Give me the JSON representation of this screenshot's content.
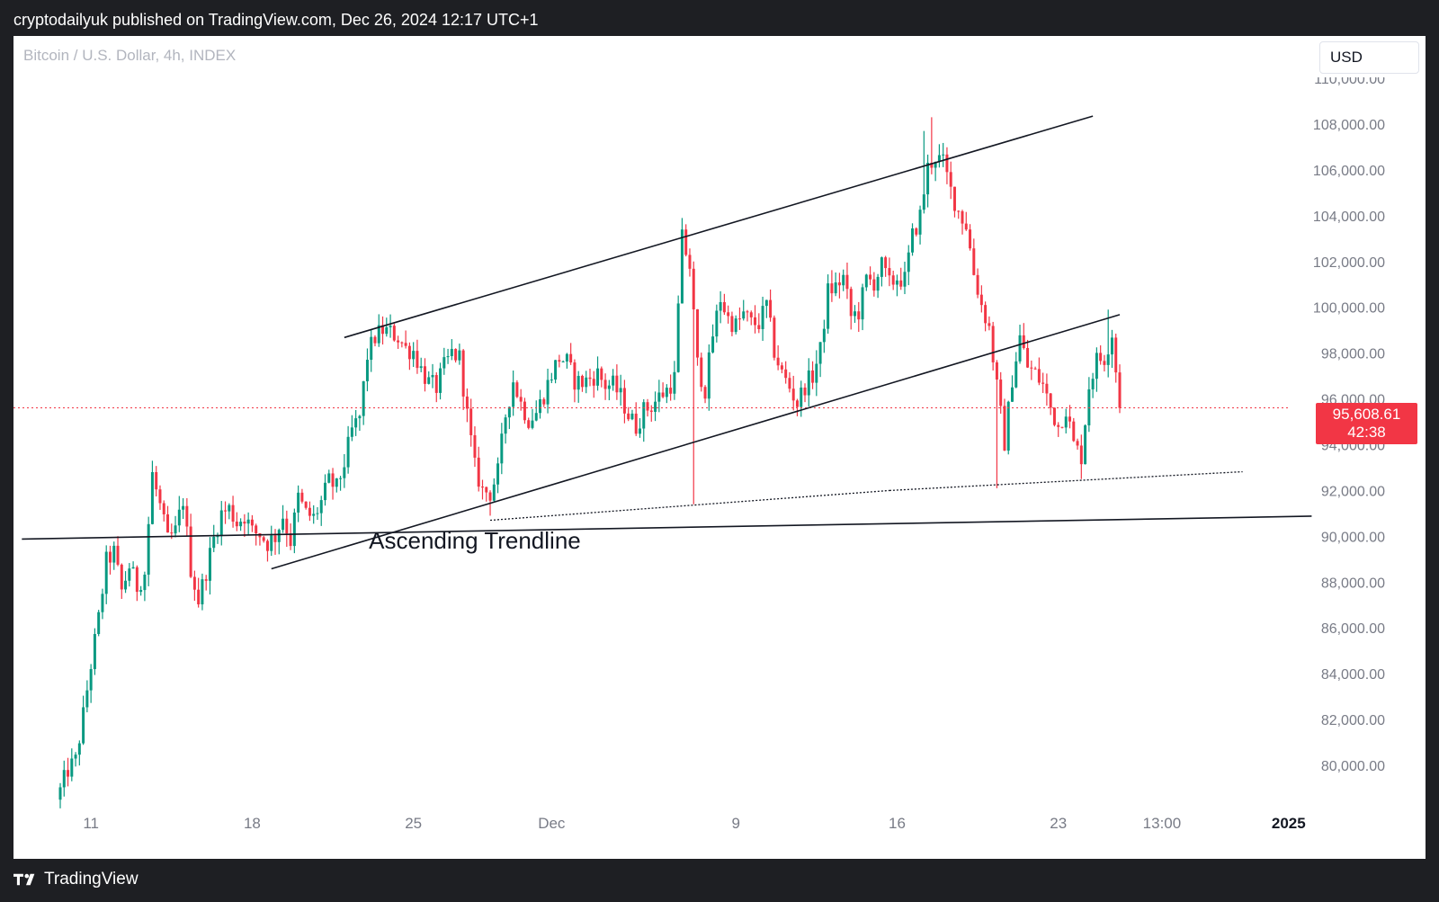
{
  "publish_bar": {
    "text": "cryptodailyuk published on TradingView.com, Dec 26, 2024 12:17 UTC+1"
  },
  "header": {
    "symbol": "Bitcoin / U.S. Dollar, 4h, INDEX",
    "currency": "USD"
  },
  "last_price": {
    "price": "95,608.61",
    "countdown": "42:38",
    "color": "#f23645"
  },
  "footer": {
    "logo_icon": "tradingview-logo-icon",
    "brand": "TradingView"
  },
  "colors": {
    "up": "#089981",
    "down": "#f23645",
    "background": "#ffffff",
    "frame": "#1e1f23",
    "axis_text": "#787b86"
  },
  "chart_data": {
    "type": "candlestick",
    "ylim": [
      78500,
      110500
    ],
    "y_ticks": [
      {
        "value": 80000,
        "label": "80,000.00"
      },
      {
        "value": 82000,
        "label": "82,000.00"
      },
      {
        "value": 84000,
        "label": "84,000.00"
      },
      {
        "value": 86000,
        "label": "86,000.00"
      },
      {
        "value": 88000,
        "label": "88,000.00"
      },
      {
        "value": 90000,
        "label": "90,000.00"
      },
      {
        "value": 92000,
        "label": "92,000.00"
      },
      {
        "value": 94000,
        "label": "94,000.00"
      },
      {
        "value": 96000,
        "label": "96,000.00"
      },
      {
        "value": 98000,
        "label": "98,000.00"
      },
      {
        "value": 100000,
        "label": "100,000.00"
      },
      {
        "value": 102000,
        "label": "102,000.00"
      },
      {
        "value": 104000,
        "label": "104,000.00"
      },
      {
        "value": 106000,
        "label": "106,000.00"
      },
      {
        "value": 108000,
        "label": "108,000.00"
      },
      {
        "value": 110000,
        "label": "110,000.00"
      }
    ],
    "x_range": [
      0,
      276
    ],
    "x_ticks": [
      {
        "t": 8,
        "label": "11"
      },
      {
        "t": 50,
        "label": "18"
      },
      {
        "t": 92,
        "label": "25"
      },
      {
        "t": 128,
        "label": "Dec"
      },
      {
        "t": 176,
        "label": "9"
      },
      {
        "t": 218,
        "label": "16"
      },
      {
        "t": 260,
        "label": "23"
      },
      {
        "t": 287,
        "label": "13:00"
      },
      {
        "t": 320,
        "label": "2025"
      }
    ],
    "x_tick_bold": [
      false,
      false,
      false,
      false,
      false,
      false,
      false,
      false,
      true
    ],
    "annotation": {
      "text": "Ascending Trendline",
      "t": 108,
      "price": 89850
    },
    "horizontal_trendline": {
      "p1": [
        -10,
        89880
      ],
      "p2": [
        326,
        90880
      ]
    },
    "channel_upper": {
      "p1": [
        74,
        98680
      ],
      "p2": [
        269,
        108350
      ]
    },
    "channel_lower": {
      "p1": [
        55,
        88580
      ],
      "p2": [
        276,
        99680
      ]
    },
    "support_dotted_1": {
      "p1": [
        112,
        90700
      ],
      "p2": [
        216,
        92000
      ]
    },
    "support_dotted_2": {
      "p1": [
        216,
        92000
      ],
      "p2": [
        308,
        92820
      ]
    },
    "current_price": 95608.61,
    "anchors": [
      [
        0,
        78900
      ],
      [
        2,
        79800
      ],
      [
        4,
        80200
      ],
      [
        6,
        82200
      ],
      [
        8,
        84400
      ],
      [
        10,
        86400
      ],
      [
        12,
        88900
      ],
      [
        14,
        89300
      ],
      [
        16,
        87600
      ],
      [
        18,
        88700
      ],
      [
        20,
        87800
      ],
      [
        22,
        88400
      ],
      [
        24,
        92700
      ],
      [
        26,
        91300
      ],
      [
        28,
        89800
      ],
      [
        30,
        90200
      ],
      [
        32,
        91600
      ],
      [
        34,
        88600
      ],
      [
        36,
        87200
      ],
      [
        38,
        88500
      ],
      [
        40,
        89900
      ],
      [
        42,
        91000
      ],
      [
        44,
        91200
      ],
      [
        46,
        90600
      ],
      [
        48,
        90900
      ],
      [
        50,
        90200
      ],
      [
        52,
        90100
      ],
      [
        54,
        89700
      ],
      [
        56,
        90000
      ],
      [
        58,
        90900
      ],
      [
        60,
        89800
      ],
      [
        62,
        91700
      ],
      [
        64,
        91000
      ],
      [
        66,
        90800
      ],
      [
        68,
        91500
      ],
      [
        70,
        92400
      ],
      [
        72,
        92100
      ],
      [
        74,
        93200
      ],
      [
        76,
        94600
      ],
      [
        78,
        95200
      ],
      [
        80,
        97900
      ],
      [
        82,
        98700
      ],
      [
        84,
        99000
      ],
      [
        86,
        98900
      ],
      [
        88,
        98700
      ],
      [
        90,
        98200
      ],
      [
        92,
        98100
      ],
      [
        94,
        97300
      ],
      [
        96,
        96700
      ],
      [
        98,
        96500
      ],
      [
        100,
        97400
      ],
      [
        102,
        98000
      ],
      [
        104,
        97800
      ],
      [
        106,
        95300
      ],
      [
        108,
        93000
      ],
      [
        110,
        92000
      ],
      [
        112,
        91900
      ],
      [
        114,
        92800
      ],
      [
        116,
        95300
      ],
      [
        118,
        96800
      ],
      [
        120,
        95800
      ],
      [
        122,
        95100
      ],
      [
        124,
        95400
      ],
      [
        126,
        96200
      ],
      [
        128,
        97100
      ],
      [
        130,
        97800
      ],
      [
        132,
        97600
      ],
      [
        134,
        96800
      ],
      [
        136,
        96700
      ],
      [
        138,
        96900
      ],
      [
        140,
        97100
      ],
      [
        142,
        96600
      ],
      [
        144,
        96600
      ],
      [
        146,
        96100
      ],
      [
        148,
        95300
      ],
      [
        150,
        94800
      ],
      [
        152,
        95500
      ],
      [
        154,
        95700
      ],
      [
        156,
        96100
      ],
      [
        158,
        96400
      ],
      [
        160,
        96900
      ],
      [
        162,
        103000
      ],
      [
        164,
        101800
      ],
      [
        166,
        97500
      ],
      [
        168,
        96400
      ],
      [
        170,
        98800
      ],
      [
        172,
        100400
      ],
      [
        174,
        99500
      ],
      [
        176,
        99200
      ],
      [
        178,
        99700
      ],
      [
        180,
        99300
      ],
      [
        182,
        99300
      ],
      [
        184,
        100100
      ],
      [
        186,
        98100
      ],
      [
        188,
        97100
      ],
      [
        190,
        96500
      ],
      [
        192,
        95800
      ],
      [
        194,
        96600
      ],
      [
        196,
        97000
      ],
      [
        198,
        98100
      ],
      [
        200,
        100700
      ],
      [
        202,
        100900
      ],
      [
        204,
        101300
      ],
      [
        206,
        99600
      ],
      [
        208,
        99800
      ],
      [
        210,
        101200
      ],
      [
        212,
        101100
      ],
      [
        214,
        101800
      ],
      [
        216,
        101000
      ],
      [
        218,
        101300
      ],
      [
        220,
        101200
      ],
      [
        222,
        103100
      ],
      [
        224,
        104000
      ],
      [
        226,
        106100
      ],
      [
        228,
        106600
      ],
      [
        230,
        106300
      ],
      [
        232,
        105100
      ],
      [
        234,
        104200
      ],
      [
        236,
        103600
      ],
      [
        238,
        101500
      ],
      [
        240,
        100100
      ],
      [
        242,
        99100
      ],
      [
        244,
        96500
      ],
      [
        246,
        94100
      ],
      [
        248,
        96900
      ],
      [
        250,
        98700
      ],
      [
        252,
        97400
      ],
      [
        254,
        97100
      ],
      [
        256,
        96600
      ],
      [
        258,
        95600
      ],
      [
        260,
        94800
      ],
      [
        262,
        95600
      ],
      [
        264,
        94000
      ],
      [
        266,
        93500
      ],
      [
        268,
        96600
      ],
      [
        270,
        97700
      ],
      [
        272,
        97800
      ],
      [
        274,
        98900
      ],
      [
        276,
        95608.61
      ]
    ],
    "events": [
      {
        "t": 162,
        "high": 103900
      },
      {
        "t": 165,
        "low": 91400
      },
      {
        "t": 225,
        "high": 107700
      },
      {
        "t": 227,
        "high": 108300
      },
      {
        "t": 244,
        "low": 92100
      },
      {
        "t": 266,
        "low": 92500
      },
      {
        "t": 112,
        "low": 90900
      },
      {
        "t": 24,
        "high": 93300
      },
      {
        "t": 84,
        "high": 99600
      },
      {
        "t": 273,
        "high": 99900
      }
    ]
  }
}
